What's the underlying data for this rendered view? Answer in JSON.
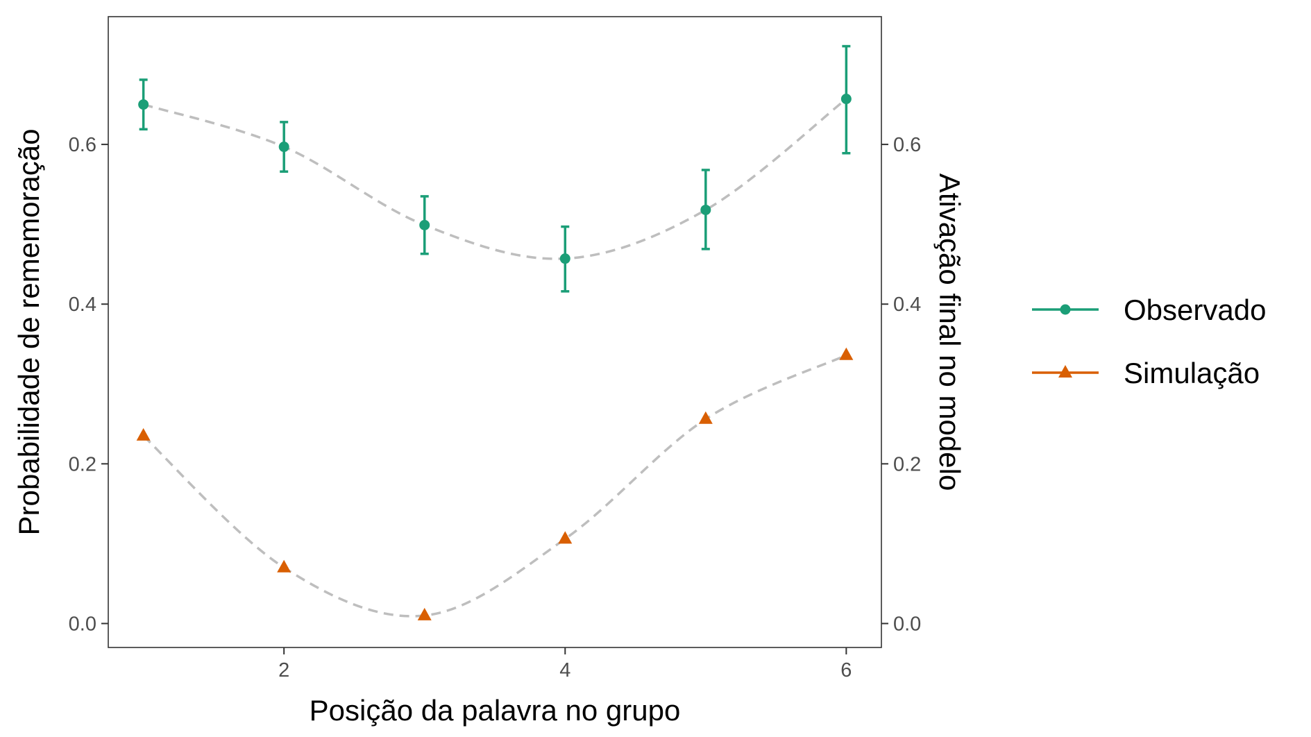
{
  "colors": {
    "observed": "#1b9e77",
    "simulation": "#d95f02",
    "trend": "#bebebe",
    "panel_border": "#333333"
  },
  "chart_data": {
    "type": "line",
    "xlabel": "Posição da palavra no grupo",
    "ylabel": "Probabilidade de rememoração",
    "y2label": "Ativação final no modelo",
    "xlim": [
      0.75,
      6.25
    ],
    "ylim": [
      -0.03,
      0.76
    ],
    "x_ticks": [
      2,
      4,
      6
    ],
    "x_tick_labels": [
      "2",
      "4",
      "6"
    ],
    "y_ticks": [
      0.0,
      0.2,
      0.4,
      0.6
    ],
    "y_tick_labels": [
      "0.0",
      "0.2",
      "0.4",
      "0.6"
    ],
    "y2_ticks": [
      0.0,
      0.2,
      0.4,
      0.6
    ],
    "y2_tick_labels": [
      "0.0",
      "0.2",
      "0.4",
      "0.6"
    ],
    "grid": false,
    "legend_position": "right",
    "series": [
      {
        "name": "Observado",
        "marker": "circle",
        "color_key": "observed",
        "x": [
          1,
          2,
          3,
          4,
          5,
          6
        ],
        "y": [
          0.65,
          0.597,
          0.499,
          0.457,
          0.518,
          0.657
        ],
        "error_low": [
          0.619,
          0.566,
          0.463,
          0.416,
          0.469,
          0.589
        ],
        "error_high": [
          0.681,
          0.628,
          0.535,
          0.497,
          0.568,
          0.723
        ]
      },
      {
        "name": "Simulação",
        "marker": "triangle",
        "color_key": "simulation",
        "x": [
          1,
          2,
          3,
          4,
          5,
          6
        ],
        "y": [
          0.235,
          0.07,
          0.01,
          0.106,
          0.256,
          0.336
        ]
      }
    ]
  }
}
